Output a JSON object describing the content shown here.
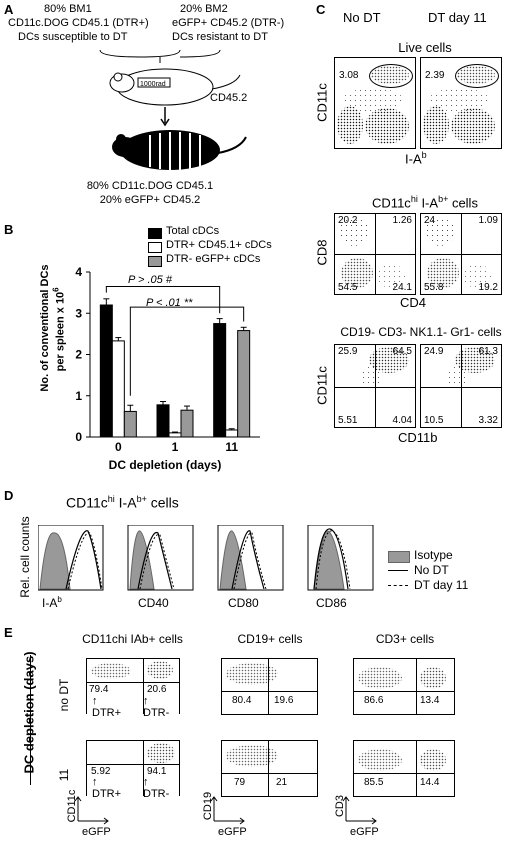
{
  "panelA": {
    "letter": "A",
    "left_lines": [
      "80% BM1",
      "CD11c.DOG CD45.1 (DTR+)",
      "DCs susceptible to DT"
    ],
    "right_lines": [
      "20% BM2",
      "eGFP+ CD45.2 (DTR-)",
      "DCs resistant to DT"
    ],
    "irradiation": "1000rad",
    "host": "CD45.2",
    "result_lines": [
      "80% CD11c.DOG CD45.1",
      "20% eGFP+ CD45.2"
    ]
  },
  "panelB": {
    "letter": "B",
    "legend": [
      "Total cDCs",
      "DTR+ CD45.1+ cDCs",
      "DTR- eGFP+ cDCs"
    ],
    "ylabel_line1": "No. of conventional DCs",
    "ylabel_line2": "per spleen x 10",
    "ylabel_exp": "6",
    "xlabel": "DC depletion (days)",
    "stat1": "P > .05  #",
    "stat2": "P < .01  **"
  },
  "chart_data": {
    "type": "bar",
    "categories": [
      "0",
      "1",
      "11"
    ],
    "series": [
      {
        "name": "Total cDCs",
        "values": [
          3.2,
          0.78,
          2.75
        ],
        "errors": [
          0.15,
          0.08,
          0.12
        ],
        "color": "#000000"
      },
      {
        "name": "DTR+ CD45.1+ cDCs",
        "values": [
          2.33,
          0.1,
          0.17
        ],
        "errors": [
          0.08,
          0.02,
          0.03
        ],
        "color": "#ffffff"
      },
      {
        "name": "DTR- eGFP+ cDCs",
        "values": [
          0.62,
          0.65,
          2.58
        ],
        "errors": [
          0.15,
          0.1,
          0.08
        ],
        "color": "#999999"
      }
    ],
    "xlabel": "DC depletion (days)",
    "ylabel": "No. of conventional DCs per spleen x 10^6",
    "ylim": [
      0,
      4
    ],
    "yticks": [
      "0",
      "1",
      "2",
      "3",
      "4"
    ]
  },
  "panelC": {
    "letter": "C",
    "cond_left": "No DT",
    "cond_right": "DT day 11",
    "live_title": "Live cells",
    "live_left": "3.08",
    "live_right": "2.39",
    "live_ylabel": "CD11c",
    "live_xlabel": "I-A",
    "live_xlabel_sup": "b",
    "cd11c_title": "CD11c",
    "cd11c_sup1": "hi",
    "cd11c_mid": " I-A",
    "cd11c_sup2": "b+",
    "cd11c_rest": " cells",
    "q2_left": [
      "20.2",
      "1.26",
      "54.5",
      "24.1"
    ],
    "q2_right": [
      "24",
      "1.09",
      "55.8",
      "19.2"
    ],
    "q2_ylabel": "CD8",
    "q2_xlabel": "CD4",
    "lin_title": "CD19- CD3- NK1.1- Gr1- cells",
    "q3_left": [
      "25.9",
      "64.5",
      "5.51",
      "4.04"
    ],
    "q3_right": [
      "24.9",
      "61.3",
      "10.5",
      "3.32"
    ],
    "q3_ylabel": "CD11c",
    "q3_xlabel": "CD11b"
  },
  "panelD": {
    "letter": "D",
    "title_main": "CD11c",
    "title_sup1": "hi",
    "title_mid": " I-A",
    "title_sup2": "b+",
    "title_rest": " cells",
    "ylabel": "Rel. cell counts",
    "xlabels": [
      "I-A",
      "CD40",
      "CD80",
      "CD86"
    ],
    "legend": [
      "Isotype",
      "No DT",
      "DT day 11"
    ]
  },
  "panelE": {
    "letter": "E",
    "row_label": "DC depletion (days)",
    "rows": [
      "no DT",
      "11"
    ],
    "col_titles": [
      "CD11chi IAb+ cells",
      "CD19+ cells",
      "CD3+ cells"
    ],
    "row0": [
      [
        "79.4",
        "20.6"
      ],
      [
        "80.4",
        "19.6"
      ],
      [
        "86.6",
        "13.4"
      ]
    ],
    "row1": [
      [
        "5.92",
        "94.1"
      ],
      [
        "79",
        "21"
      ],
      [
        "85.5",
        "14.4"
      ]
    ],
    "arrows": [
      "DTR+",
      "DTR-"
    ],
    "ylabels": [
      "CD11c",
      "CD19",
      "CD3"
    ],
    "xlabel": "eGFP"
  }
}
